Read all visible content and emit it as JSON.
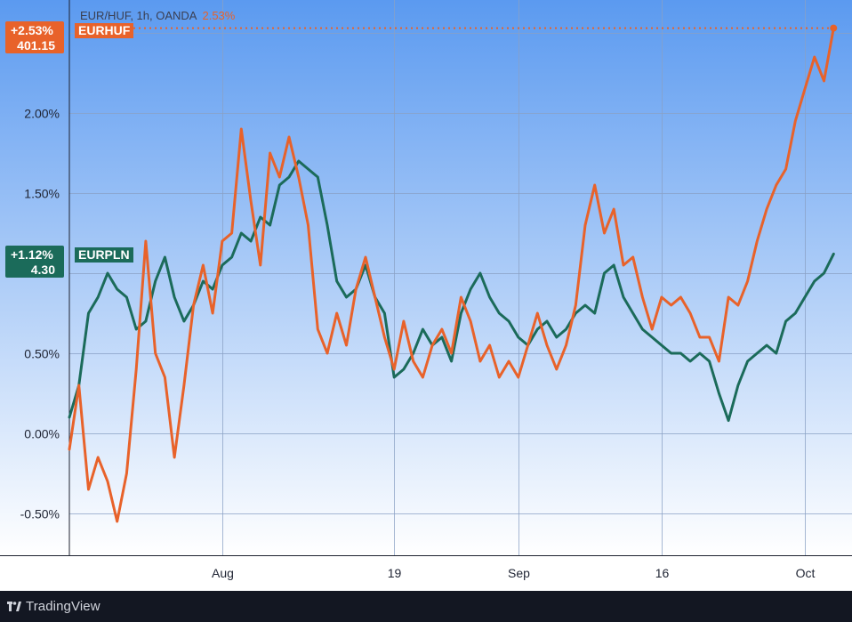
{
  "header": {
    "title": "EUR/HUF, 1h, OANDA",
    "change": "2.53%"
  },
  "footer": {
    "brand": "TradingView"
  },
  "labels": {
    "hufChange": "+2.53%",
    "hufPrice": "401.15",
    "hufSymbol": "EURHUF",
    "plnChange": "+1.12%",
    "plnPrice": "4.30",
    "plnSymbol": "EURPLN"
  },
  "colors": {
    "EURHUF": "#e8622a",
    "EURPLN": "#1b6b5a",
    "bg_top": "#5b9af0",
    "bg_bottom": "#ffffff"
  },
  "chart_data": {
    "type": "line",
    "y_unit": "%",
    "ylim": [
      -0.75,
      2.65
    ],
    "grid": true,
    "y_ticks": [
      {
        "v": -0.5,
        "label": "-0.50%"
      },
      {
        "v": 0.0,
        "label": "0.00%"
      },
      {
        "v": 0.5,
        "label": "0.50%"
      },
      {
        "v": 1.0,
        "label": ""
      },
      {
        "v": 1.5,
        "label": "1.50%"
      },
      {
        "v": 2.0,
        "label": "2.00%"
      },
      {
        "v": 2.5,
        "label": ""
      }
    ],
    "x_range": [
      "Jul 16",
      "Oct 5"
    ],
    "x_ticks": [
      {
        "date": "Aug 1",
        "label": "Aug"
      },
      {
        "date": "Aug 19",
        "label": "19"
      },
      {
        "date": "Sep 1",
        "label": "Sep"
      },
      {
        "date": "Sep 16",
        "label": "16"
      },
      {
        "date": "Oct 1",
        "label": "Oct"
      }
    ],
    "series": [
      {
        "name": "EURHUF",
        "last": 2.53,
        "points": [
          [
            "Jul 16",
            -0.1
          ],
          [
            "Jul 17",
            0.3
          ],
          [
            "Jul 18",
            -0.35
          ],
          [
            "Jul 19",
            -0.15
          ],
          [
            "Jul 20",
            -0.3
          ],
          [
            "Jul 21",
            -0.55
          ],
          [
            "Jul 22",
            -0.25
          ],
          [
            "Jul 23",
            0.4
          ],
          [
            "Jul 24",
            1.2
          ],
          [
            "Jul 25",
            0.5
          ],
          [
            "Jul 26",
            0.35
          ],
          [
            "Jul 27",
            -0.15
          ],
          [
            "Jul 28",
            0.3
          ],
          [
            "Jul 29",
            0.8
          ],
          [
            "Jul 30",
            1.05
          ],
          [
            "Jul 31",
            0.75
          ],
          [
            "Aug 1",
            1.2
          ],
          [
            "Aug 2",
            1.25
          ],
          [
            "Aug 3",
            1.9
          ],
          [
            "Aug 4",
            1.45
          ],
          [
            "Aug 5",
            1.05
          ],
          [
            "Aug 6",
            1.75
          ],
          [
            "Aug 7",
            1.6
          ],
          [
            "Aug 8",
            1.85
          ],
          [
            "Aug 9",
            1.6
          ],
          [
            "Aug 10",
            1.3
          ],
          [
            "Aug 11",
            0.65
          ],
          [
            "Aug 12",
            0.5
          ],
          [
            "Aug 13",
            0.75
          ],
          [
            "Aug 14",
            0.55
          ],
          [
            "Aug 15",
            0.9
          ],
          [
            "Aug 16",
            1.1
          ],
          [
            "Aug 17",
            0.85
          ],
          [
            "Aug 18",
            0.6
          ],
          [
            "Aug 19",
            0.4
          ],
          [
            "Aug 20",
            0.7
          ],
          [
            "Aug 21",
            0.45
          ],
          [
            "Aug 22",
            0.35
          ],
          [
            "Aug 23",
            0.55
          ],
          [
            "Aug 24",
            0.65
          ],
          [
            "Aug 25",
            0.5
          ],
          [
            "Aug 26",
            0.85
          ],
          [
            "Aug 27",
            0.7
          ],
          [
            "Aug 28",
            0.45
          ],
          [
            "Aug 29",
            0.55
          ],
          [
            "Aug 30",
            0.35
          ],
          [
            "Aug 31",
            0.45
          ],
          [
            "Sep 1",
            0.35
          ],
          [
            "Sep 2",
            0.55
          ],
          [
            "Sep 3",
            0.75
          ],
          [
            "Sep 4",
            0.55
          ],
          [
            "Sep 5",
            0.4
          ],
          [
            "Sep 6",
            0.55
          ],
          [
            "Sep 7",
            0.8
          ],
          [
            "Sep 8",
            1.3
          ],
          [
            "Sep 9",
            1.55
          ],
          [
            "Sep 10",
            1.25
          ],
          [
            "Sep 11",
            1.4
          ],
          [
            "Sep 12",
            1.05
          ],
          [
            "Sep 13",
            1.1
          ],
          [
            "Sep 14",
            0.85
          ],
          [
            "Sep 15",
            0.65
          ],
          [
            "Sep 16",
            0.85
          ],
          [
            "Sep 17",
            0.8
          ],
          [
            "Sep 18",
            0.85
          ],
          [
            "Sep 19",
            0.75
          ],
          [
            "Sep 20",
            0.6
          ],
          [
            "Sep 21",
            0.6
          ],
          [
            "Sep 22",
            0.45
          ],
          [
            "Sep 23",
            0.85
          ],
          [
            "Sep 24",
            0.8
          ],
          [
            "Sep 25",
            0.95
          ],
          [
            "Sep 26",
            1.2
          ],
          [
            "Sep 27",
            1.4
          ],
          [
            "Sep 28",
            1.55
          ],
          [
            "Sep 29",
            1.65
          ],
          [
            "Sep 30",
            1.95
          ],
          [
            "Oct 1",
            2.15
          ],
          [
            "Oct 2",
            2.35
          ],
          [
            "Oct 3",
            2.2
          ],
          [
            "Oct 4",
            2.53
          ]
        ]
      },
      {
        "name": "EURPLN",
        "last": 1.12,
        "points": [
          [
            "Jul 16",
            0.1
          ],
          [
            "Jul 17",
            0.3
          ],
          [
            "Jul 18",
            0.75
          ],
          [
            "Jul 19",
            0.85
          ],
          [
            "Jul 20",
            1.0
          ],
          [
            "Jul 21",
            0.9
          ],
          [
            "Jul 22",
            0.85
          ],
          [
            "Jul 23",
            0.65
          ],
          [
            "Jul 24",
            0.7
          ],
          [
            "Jul 25",
            0.95
          ],
          [
            "Jul 26",
            1.1
          ],
          [
            "Jul 27",
            0.85
          ],
          [
            "Jul 28",
            0.7
          ],
          [
            "Jul 29",
            0.8
          ],
          [
            "Jul 30",
            0.95
          ],
          [
            "Jul 31",
            0.9
          ],
          [
            "Aug 1",
            1.05
          ],
          [
            "Aug 2",
            1.1
          ],
          [
            "Aug 3",
            1.25
          ],
          [
            "Aug 4",
            1.2
          ],
          [
            "Aug 5",
            1.35
          ],
          [
            "Aug 6",
            1.3
          ],
          [
            "Aug 7",
            1.55
          ],
          [
            "Aug 8",
            1.6
          ],
          [
            "Aug 9",
            1.7
          ],
          [
            "Aug 10",
            1.65
          ],
          [
            "Aug 11",
            1.6
          ],
          [
            "Aug 12",
            1.3
          ],
          [
            "Aug 13",
            0.95
          ],
          [
            "Aug 14",
            0.85
          ],
          [
            "Aug 15",
            0.9
          ],
          [
            "Aug 16",
            1.05
          ],
          [
            "Aug 17",
            0.85
          ],
          [
            "Aug 18",
            0.75
          ],
          [
            "Aug 19",
            0.35
          ],
          [
            "Aug 20",
            0.4
          ],
          [
            "Aug 21",
            0.5
          ],
          [
            "Aug 22",
            0.65
          ],
          [
            "Aug 23",
            0.55
          ],
          [
            "Aug 24",
            0.6
          ],
          [
            "Aug 25",
            0.45
          ],
          [
            "Aug 26",
            0.75
          ],
          [
            "Aug 27",
            0.9
          ],
          [
            "Aug 28",
            1.0
          ],
          [
            "Aug 29",
            0.85
          ],
          [
            "Aug 30",
            0.75
          ],
          [
            "Aug 31",
            0.7
          ],
          [
            "Sep 1",
            0.6
          ],
          [
            "Sep 2",
            0.55
          ],
          [
            "Sep 3",
            0.65
          ],
          [
            "Sep 4",
            0.7
          ],
          [
            "Sep 5",
            0.6
          ],
          [
            "Sep 6",
            0.65
          ],
          [
            "Sep 7",
            0.75
          ],
          [
            "Sep 8",
            0.8
          ],
          [
            "Sep 9",
            0.75
          ],
          [
            "Sep 10",
            1.0
          ],
          [
            "Sep 11",
            1.05
          ],
          [
            "Sep 12",
            0.85
          ],
          [
            "Sep 13",
            0.75
          ],
          [
            "Sep 14",
            0.65
          ],
          [
            "Sep 15",
            0.6
          ],
          [
            "Sep 16",
            0.55
          ],
          [
            "Sep 17",
            0.5
          ],
          [
            "Sep 18",
            0.5
          ],
          [
            "Sep 19",
            0.45
          ],
          [
            "Sep 20",
            0.5
          ],
          [
            "Sep 21",
            0.45
          ],
          [
            "Sep 22",
            0.25
          ],
          [
            "Sep 23",
            0.08
          ],
          [
            "Sep 24",
            0.3
          ],
          [
            "Sep 25",
            0.45
          ],
          [
            "Sep 26",
            0.5
          ],
          [
            "Sep 27",
            0.55
          ],
          [
            "Sep 28",
            0.5
          ],
          [
            "Sep 29",
            0.7
          ],
          [
            "Sep 30",
            0.75
          ],
          [
            "Oct 1",
            0.85
          ],
          [
            "Oct 2",
            0.95
          ],
          [
            "Oct 3",
            1.0
          ],
          [
            "Oct 4",
            1.12
          ]
        ]
      }
    ]
  }
}
